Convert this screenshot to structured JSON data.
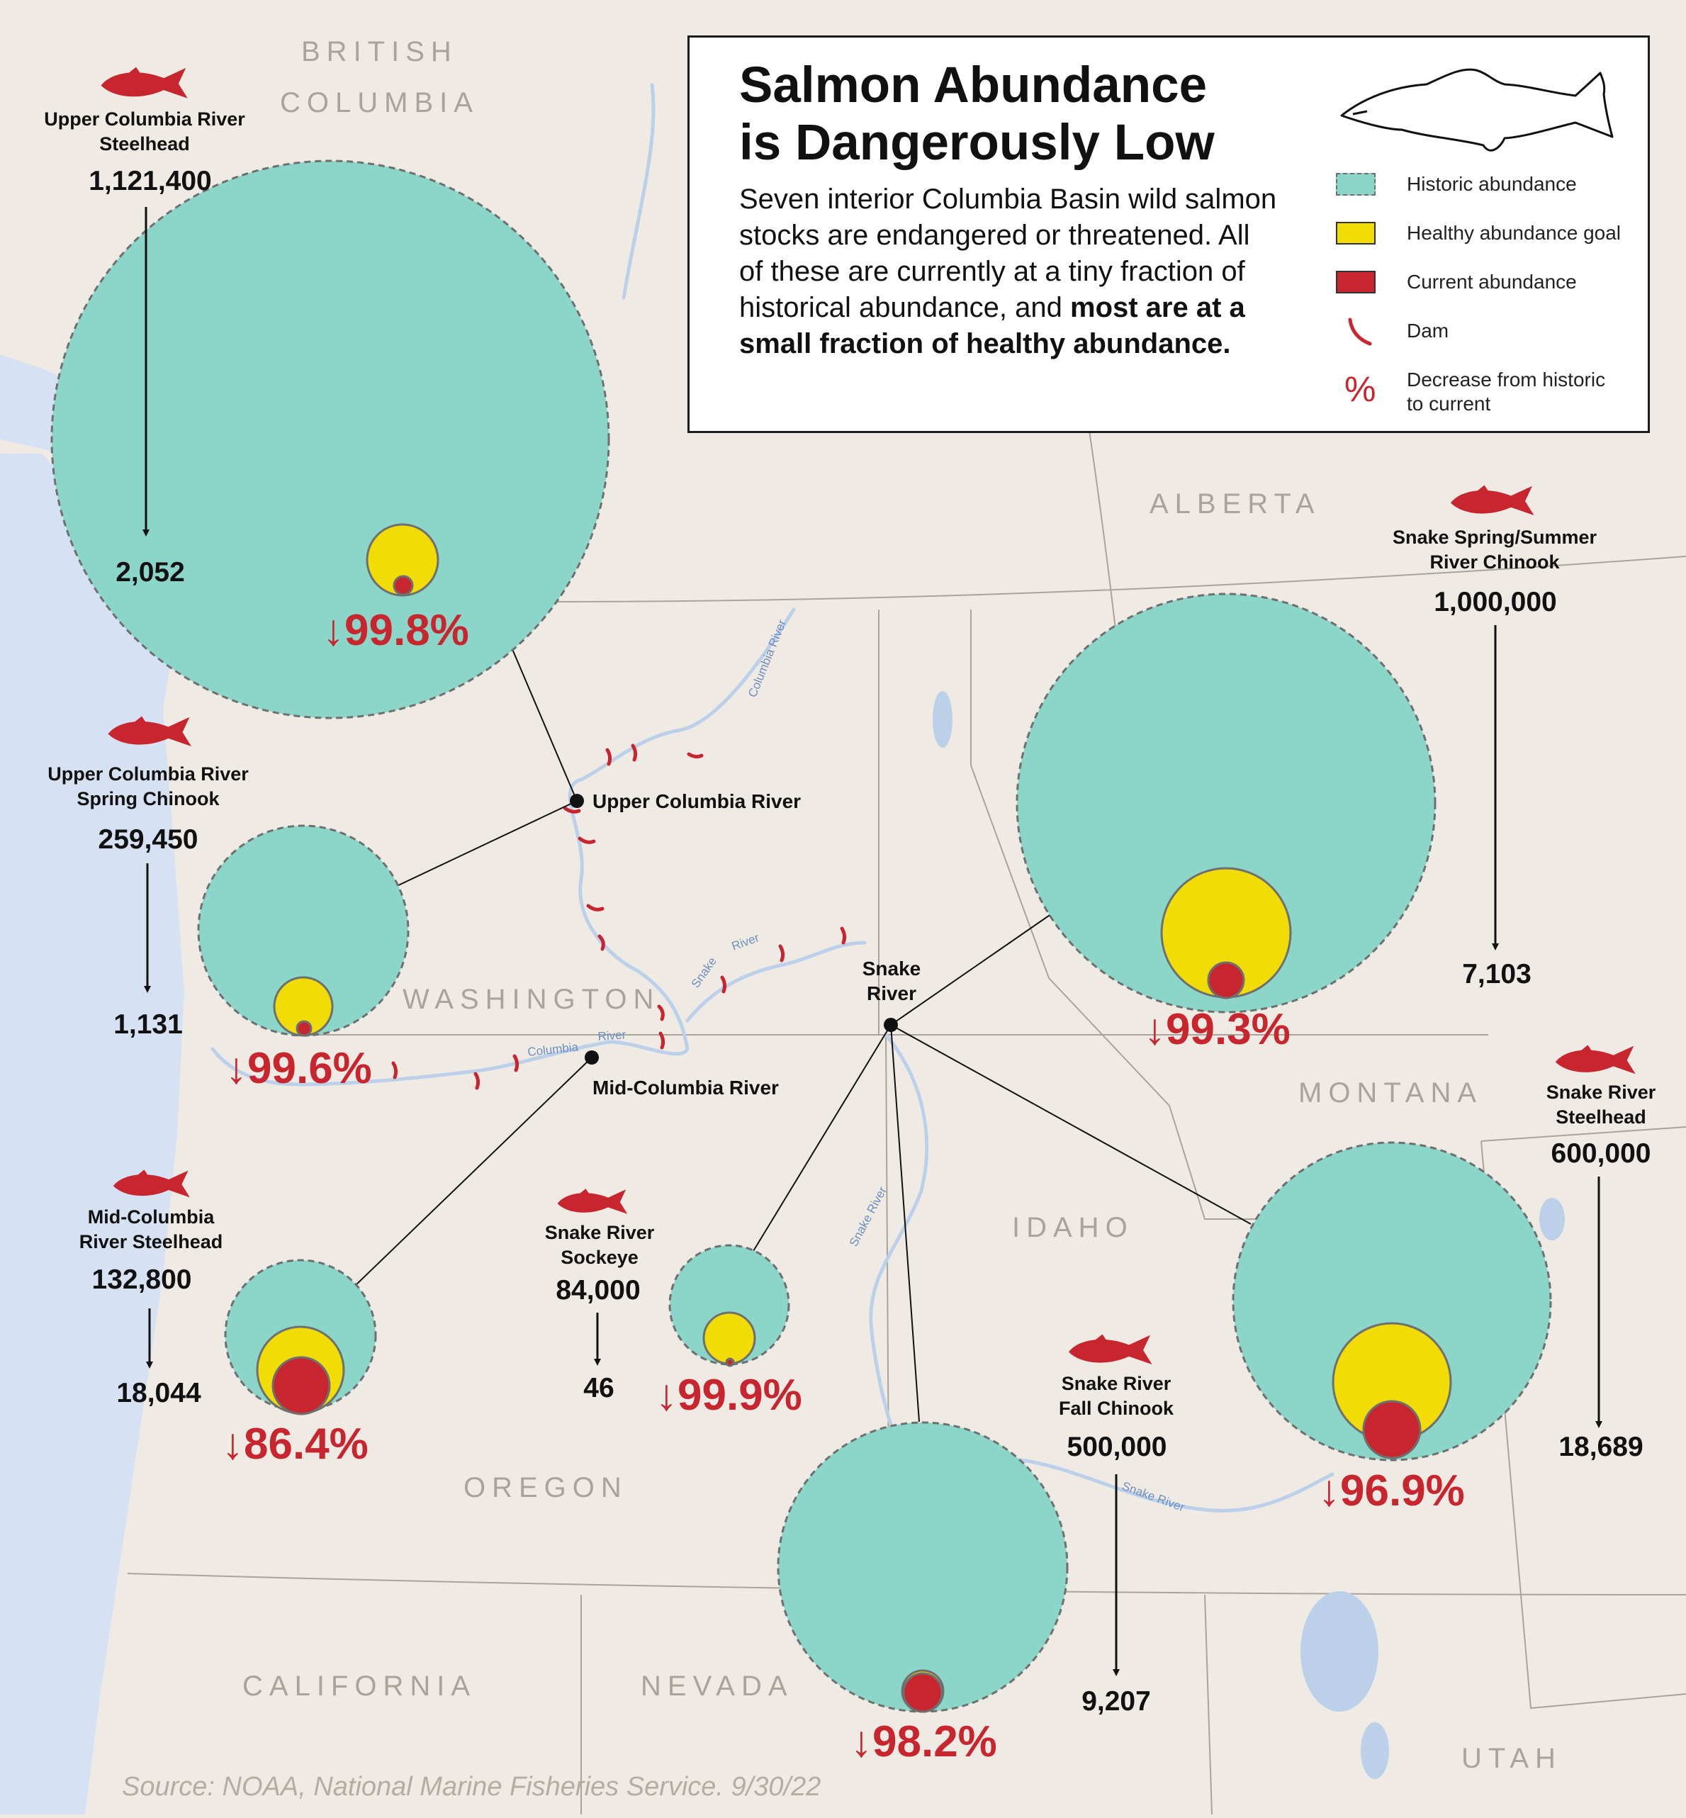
{
  "legend": {
    "title_line1": "Salmon Abundance",
    "title_line2": "is Dangerously Low",
    "desc_normal": "Seven interior Columbia Basin wild salmon stocks are endangered or threatened. All of these are currently at a tiny fraction of historical abundance, and ",
    "desc_bold": "most are at a small fraction of healthy abundance.",
    "items": [
      {
        "label": "Historic abundance",
        "color": "#8bd6c9"
      },
      {
        "label": "Healthy abundance goal",
        "color": "#f1dc06"
      },
      {
        "label": "Current abundance",
        "color": "#c8262e"
      },
      {
        "label": "Dam",
        "color": "#c8262e"
      },
      {
        "label_line1": "Decrease from historic",
        "label_line2": "to current",
        "symbol": "%",
        "color": "#c8262e"
      }
    ]
  },
  "regions": {
    "bc_line1": "BRITISH",
    "bc_line2": "COLUMBIA",
    "alberta": "ALBERTA",
    "washington": "WASHINGTON",
    "montana": "MONTANA",
    "idaho": "IDAHO",
    "oregon": "OREGON",
    "california": "CALIFORNIA",
    "nevada": "NEVADA",
    "utah": "UTAH"
  },
  "rivers": {
    "columbia_north": "Columbia River",
    "columbia_lower1": "Columbia",
    "columbia_lower2": "River",
    "snake_arc1": "Snake",
    "snake_arc2": "River",
    "snake_south": "Snake River",
    "snake_east": "Snake River"
  },
  "hubs": {
    "upper_columbia": "Upper Columbia River",
    "mid_columbia": "Mid-Columbia River",
    "snake_line1": "Snake",
    "snake_line2": "River"
  },
  "stocks": [
    {
      "name_line1": "Upper Columbia River",
      "name_line2": "Steelhead",
      "historic": "1,121,400",
      "current": "2,052",
      "decrease": "↓99.8%"
    },
    {
      "name_line1": "Upper Columbia River",
      "name_line2": "Spring Chinook",
      "historic": "259,450",
      "current": "1,131",
      "decrease": "↓99.6%"
    },
    {
      "name_line1": "Mid-Columbia",
      "name_line2": "River Steelhead",
      "historic": "132,800",
      "current": "18,044",
      "decrease": "↓86.4%"
    },
    {
      "name_line1": "Snake River",
      "name_line2": "Sockeye",
      "historic": "84,000",
      "current": "46",
      "decrease": "↓99.9%"
    },
    {
      "name_line1": "Snake River",
      "name_line2": "Fall Chinook",
      "historic": "500,000",
      "current": "9,207",
      "decrease": "↓98.2%"
    },
    {
      "name_line1": "Snake River",
      "name_line2": "Steelhead",
      "historic": "600,000",
      "current": "18,689",
      "decrease": "↓96.9%"
    },
    {
      "name_line1": "Snake Spring/Summer",
      "name_line2": "River Chinook",
      "historic": "1,000,000",
      "current": "7,103",
      "decrease": "↓99.3%"
    }
  ],
  "source": "Source: NOAA, National Marine Fisheries Service. 9/30/22",
  "colors": {
    "land": "#efebe4",
    "ocean": "#d6e2f3",
    "water": "#bcd0ea",
    "historic": "#8bd6c9",
    "healthy": "#f1dc06",
    "current": "#c8262e",
    "accent_red": "#c8262e"
  },
  "icons": [
    "salmon-icon",
    "fish-outline-icon",
    "down-arrow-icon",
    "dam-icon"
  ]
}
